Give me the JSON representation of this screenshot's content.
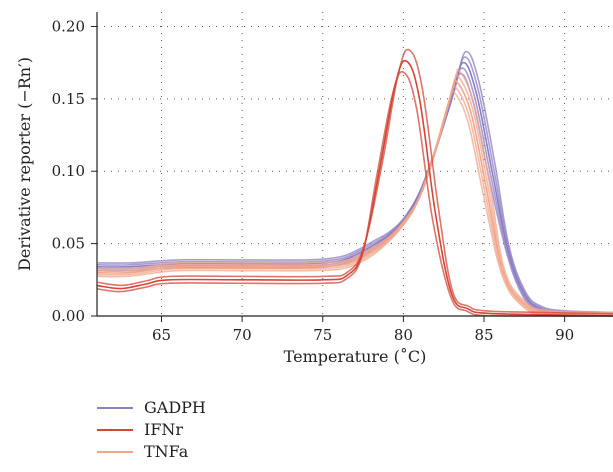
{
  "chart_data": {
    "type": "line",
    "xlabel": "Temperature (˚C)",
    "ylabel": "Derivative reporter (−Rn′)",
    "xlim": [
      61,
      93
    ],
    "ylim": [
      0,
      0.21
    ],
    "xticks": [
      65,
      70,
      75,
      80,
      85,
      90
    ],
    "yticks": [
      0.0,
      0.05,
      0.1,
      0.15,
      0.2
    ],
    "ytick_labels": [
      "0.00",
      "0.05",
      "0.10",
      "0.15",
      "0.20"
    ],
    "grid": "dotted",
    "legend_position": "below",
    "series": [
      {
        "name": "GADPH",
        "color": "#8b7cc4",
        "replicates": 5,
        "x": [
          61,
          63,
          66,
          70,
          74,
          76,
          77,
          78,
          79,
          80,
          81,
          82,
          83,
          83.7,
          84.5,
          85.5,
          86.5,
          87.5,
          88.5,
          90,
          93
        ],
        "y": [
          0.034,
          0.034,
          0.036,
          0.036,
          0.036,
          0.038,
          0.042,
          0.048,
          0.055,
          0.066,
          0.085,
          0.115,
          0.15,
          0.175,
          0.155,
          0.1,
          0.045,
          0.015,
          0.005,
          0.002,
          0.001
        ]
      },
      {
        "name": "IFNr",
        "color": "#d64535",
        "replicates": 3,
        "x": [
          61,
          62.5,
          64,
          65.5,
          70,
          75,
          76.5,
          77.5,
          78.5,
          79.5,
          80.2,
          81,
          82,
          83,
          84,
          85,
          88,
          93
        ],
        "y": [
          0.021,
          0.019,
          0.022,
          0.025,
          0.025,
          0.025,
          0.028,
          0.045,
          0.1,
          0.16,
          0.176,
          0.15,
          0.07,
          0.015,
          0.005,
          0.002,
          0.001,
          0.0
        ]
      },
      {
        "name": "TNFa",
        "color": "#f2a68a",
        "replicates": 5,
        "x": [
          61,
          63,
          66,
          70,
          74,
          76,
          77,
          78,
          79,
          80,
          81,
          82,
          83,
          83.3,
          84.2,
          85.2,
          86.2,
          87.5,
          89,
          93
        ],
        "y": [
          0.03,
          0.03,
          0.034,
          0.034,
          0.034,
          0.035,
          0.038,
          0.044,
          0.052,
          0.064,
          0.082,
          0.115,
          0.155,
          0.162,
          0.14,
          0.085,
          0.03,
          0.008,
          0.002,
          0.001
        ]
      }
    ]
  }
}
